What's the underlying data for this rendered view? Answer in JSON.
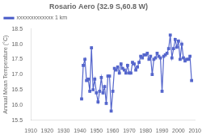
{
  "chart_data": {
    "type": "line",
    "title": "Rosario Aero (32.9 S,60.8 W)",
    "ylabel": "Annual Mean Temperature (°C)",
    "legend": "upper left",
    "grid": false,
    "xlim": [
      1910,
      2010
    ],
    "ylim": [
      15.5,
      18.5
    ],
    "xticks": [
      1910,
      1920,
      1930,
      1940,
      1950,
      1960,
      1970,
      1980,
      1990,
      2000,
      2010
    ],
    "yticks": [
      15.5,
      {
        "value": 16.0,
        "label": "16.0"
      },
      16.5,
      {
        "value": 17.0,
        "label": "17.0"
      },
      17.5,
      {
        "value": 18.0,
        "label": "18.0"
      },
      18.5
    ],
    "x": [
      1941,
      1942,
      1943,
      1944,
      1945,
      1946,
      1947,
      1948,
      1949,
      1950,
      1951,
      1952,
      1953,
      1954,
      1955,
      1956,
      1957,
      1958,
      1959,
      1960,
      1961,
      1962,
      1963,
      1964,
      1965,
      1966,
      1967,
      1968,
      1969,
      1970,
      1971,
      1972,
      1973,
      1974,
      1975,
      1976,
      1977,
      1978,
      1979,
      1980,
      1981,
      1982,
      1983,
      1984,
      1985,
      1986,
      1987,
      1988,
      1989,
      1990,
      1991,
      1992,
      1993,
      1994,
      1995,
      1996,
      1997,
      1998,
      1999,
      2000,
      2001,
      2002,
      2003,
      2004,
      2005,
      2006,
      2007,
      2008
    ],
    "series": [
      {
        "name": "xxxxxxxxxxxxx 1 km",
        "color": "#5566cc",
        "marker": "square",
        "values": [
          16.2,
          17.3,
          17.5,
          16.8,
          16.85,
          16.45,
          17.88,
          16.5,
          16.85,
          16.4,
          16.1,
          16.45,
          16.9,
          16.4,
          16.6,
          16.05,
          16.95,
          16.95,
          15.8,
          16.45,
          17.2,
          17.15,
          17.25,
          17.05,
          17.35,
          17.2,
          17.15,
          17.05,
          17.3,
          17.05,
          17.05,
          17.4,
          17.35,
          17.15,
          17.25,
          17.4,
          17.6,
          17.55,
          17.65,
          17.65,
          17.7,
          17.5,
          17.6,
          17.0,
          17.5,
          17.55,
          17.7,
          17.6,
          17.55,
          16.45,
          17.6,
          17.65,
          17.7,
          17.85,
          18.3,
          17.55,
          17.85,
          18.15,
          17.9,
          18.1,
          17.5,
          18.0,
          17.55,
          17.45,
          17.5,
          17.5,
          17.6,
          16.8
        ]
      }
    ]
  }
}
